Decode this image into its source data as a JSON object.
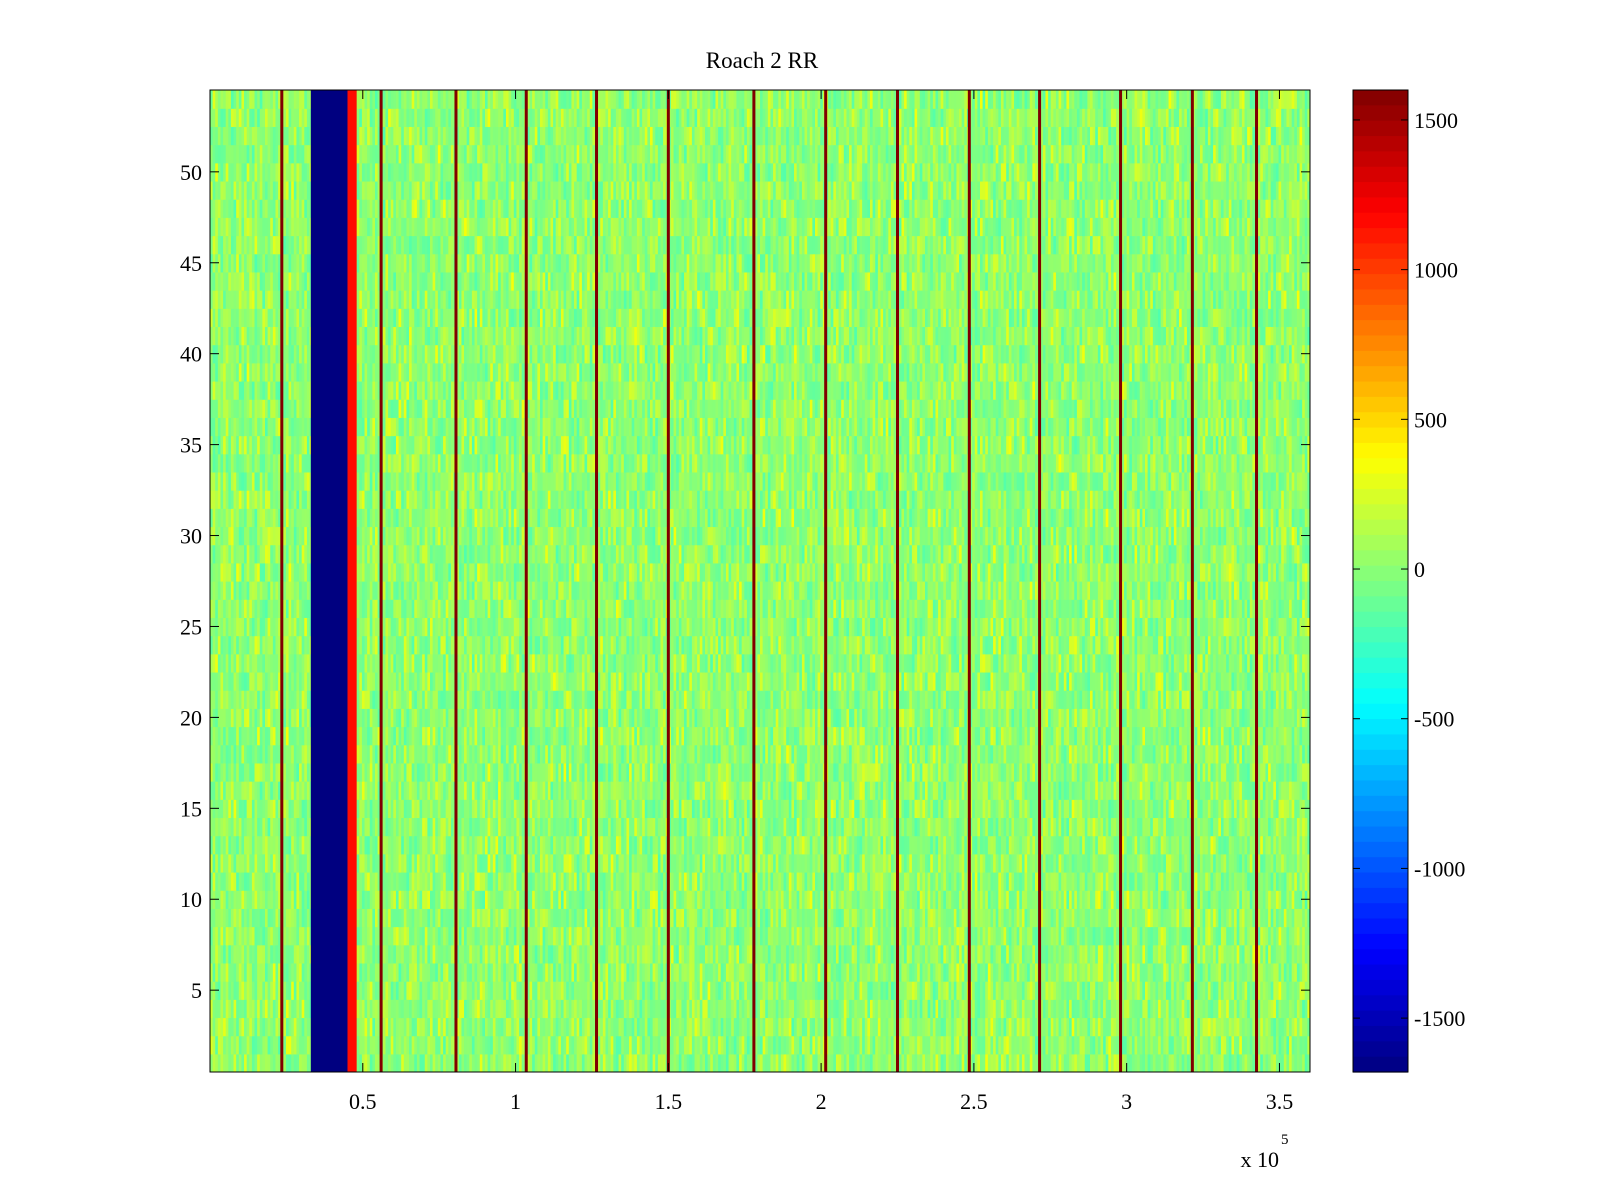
{
  "chart_data": {
    "type": "heatmap",
    "title": "Roach 2 RR",
    "xlabel": "",
    "ylabel": "",
    "x_multiplier_label": "x 10",
    "x_multiplier_exponent": "5",
    "x_scale_factor": 100000,
    "xlim": [
      0,
      360000
    ],
    "ylim": [
      0.5,
      54.5
    ],
    "rows": 54,
    "x_ticks": [
      50000,
      100000,
      150000,
      200000,
      250000,
      300000,
      350000
    ],
    "x_tick_labels": [
      "0.5",
      "1",
      "1.5",
      "2",
      "2.5",
      "3",
      "3.5"
    ],
    "y_ticks": [
      5,
      10,
      15,
      20,
      25,
      30,
      35,
      40,
      45,
      50
    ],
    "y_tick_labels": [
      "5",
      "10",
      "15",
      "20",
      "25",
      "30",
      "35",
      "40",
      "45",
      "50"
    ],
    "colorbar": {
      "colormap": "jet",
      "clim": [
        -1680,
        1600
      ],
      "ticks": [
        1500,
        1000,
        500,
        0,
        -500,
        -1000,
        -1500
      ],
      "tick_labels": [
        "1500",
        "1000",
        "500",
        "0",
        "-500",
        "-1000",
        "-1500"
      ]
    },
    "background_value_range": [
      -200,
      350
    ],
    "blocked_band": {
      "x_range": [
        33000,
        45000
      ],
      "value": -1680
    },
    "high_band": {
      "x_range": [
        45000,
        48000
      ],
      "value": 1150
    },
    "spike_lines": {
      "x": [
        23500,
        56000,
        80500,
        103500,
        126500,
        150000,
        178000,
        201500,
        225000,
        248500,
        271500,
        298000,
        321500,
        342500
      ],
      "value": 1600
    },
    "grid": false,
    "legend": "none"
  }
}
